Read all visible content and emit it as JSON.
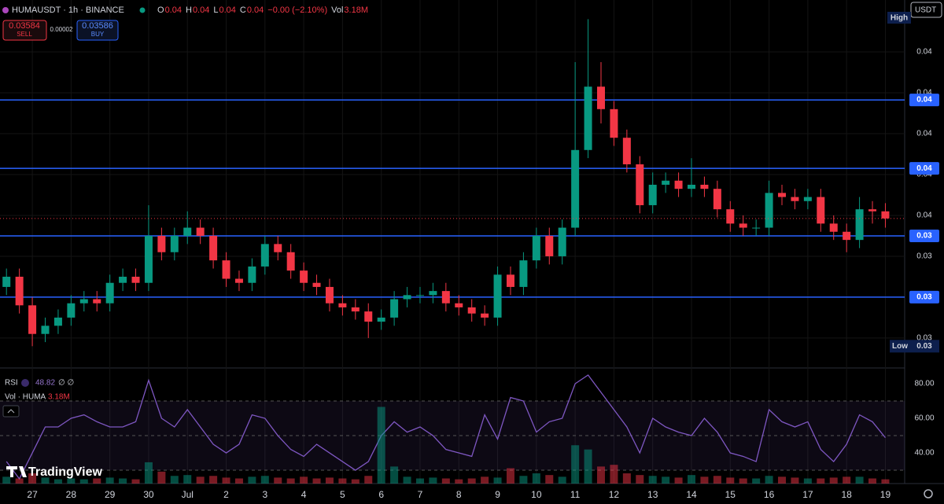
{
  "header": {
    "symbol": "HUMAUSDT · 1h · BINANCE",
    "ohlc": [
      {
        "k": "O",
        "v": "0.04"
      },
      {
        "k": "H",
        "v": "0.04"
      },
      {
        "k": "L",
        "v": "0.04"
      },
      {
        "k": "C",
        "v": "0.04"
      }
    ],
    "change": "−0.00 (−2.10%)",
    "vol_key": "Vol",
    "vol_value": "3.18M",
    "sell_price": "0.03584",
    "sell": "SELL",
    "spread": "0.00002",
    "buy_price": "0.03586",
    "buy": "BUY",
    "currency": "USDT",
    "high": "High",
    "low": {
      "text": "Low",
      "value": 0.0296,
      "label": "0.03"
    },
    "rsi_name": "RSI",
    "rsi_value": "48.82",
    "rsi_extra": "∅ ∅",
    "vol_name": "Vol · HUMA",
    "vol_pane_value": "3.18M",
    "brand": "TradingView"
  },
  "chart_data": [
    {
      "type": "candlestick",
      "up_color": "#089981",
      "down_color": "#f23645",
      "categories": [
        null,
        null,
        "27",
        null,
        null,
        "28",
        null,
        null,
        "29",
        null,
        null,
        "30",
        null,
        null,
        "Jul",
        null,
        null,
        "2",
        null,
        null,
        "3",
        null,
        null,
        "4",
        null,
        null,
        "5",
        null,
        null,
        "6",
        null,
        null,
        "7",
        null,
        null,
        "8",
        null,
        null,
        "9",
        null,
        null,
        "10",
        null,
        null,
        "11",
        null,
        null,
        "12",
        null,
        null,
        "13",
        null,
        null,
        "14",
        null,
        null,
        "15",
        null,
        null,
        "16",
        null,
        null,
        "17",
        null,
        null,
        "18",
        null,
        null,
        "19"
      ],
      "open": [
        0.0325,
        0.033,
        0.0316,
        0.0302,
        0.0306,
        0.031,
        0.0317,
        0.0319,
        0.0317,
        0.0327,
        0.033,
        0.0327,
        0.035,
        0.0342,
        0.035,
        0.0354,
        0.035,
        0.0338,
        0.0329,
        0.0327,
        0.0335,
        0.0346,
        0.0342,
        0.0333,
        0.0327,
        0.0325,
        0.0317,
        0.0315,
        0.0313,
        0.0308,
        0.031,
        0.0319,
        0.0321,
        0.0321,
        0.0323,
        0.0317,
        0.0315,
        0.0312,
        0.031,
        0.0331,
        0.0325,
        0.0338,
        0.035,
        0.034,
        0.0354,
        0.0392,
        0.0423,
        0.0412,
        0.0398,
        0.0385,
        0.0365,
        0.0375,
        0.0377,
        0.0373,
        0.0375,
        0.0373,
        0.0363,
        0.0356,
        0.0354,
        0.0354,
        0.0371,
        0.0369,
        0.0367,
        0.0369,
        0.0356,
        0.0352,
        0.0348,
        0.0363,
        0.0362
      ],
      "high": [
        0.0334,
        0.0334,
        0.032,
        0.031,
        0.0314,
        0.0321,
        0.0323,
        0.0323,
        0.0331,
        0.0334,
        0.0334,
        0.0365,
        0.0354,
        0.0354,
        0.0362,
        0.0358,
        0.0354,
        0.0342,
        0.0333,
        0.0339,
        0.035,
        0.035,
        0.0346,
        0.0337,
        0.0331,
        0.0329,
        0.0321,
        0.0319,
        0.0317,
        0.0314,
        0.0323,
        0.0325,
        0.0325,
        0.0327,
        0.0327,
        0.0321,
        0.0319,
        0.0316,
        0.0335,
        0.0335,
        0.0342,
        0.0354,
        0.0354,
        0.0358,
        0.0435,
        0.0456,
        0.0435,
        0.0416,
        0.0402,
        0.0389,
        0.0381,
        0.0381,
        0.0381,
        0.0388,
        0.0379,
        0.0377,
        0.0367,
        0.036,
        0.0358,
        0.0377,
        0.0375,
        0.0373,
        0.0373,
        0.0373,
        0.036,
        0.0356,
        0.0369,
        0.0367,
        0.0366
      ],
      "low": [
        0.0321,
        0.0312,
        0.0296,
        0.0298,
        0.0302,
        0.0306,
        0.0313,
        0.0313,
        0.0313,
        0.0323,
        0.0323,
        0.0323,
        0.0338,
        0.0338,
        0.0346,
        0.0346,
        0.0334,
        0.0325,
        0.0323,
        0.0323,
        0.0331,
        0.0338,
        0.0329,
        0.0323,
        0.0321,
        0.0313,
        0.0311,
        0.0309,
        0.03,
        0.0304,
        0.0306,
        0.0315,
        0.0317,
        0.0317,
        0.0313,
        0.0311,
        0.0308,
        0.0306,
        0.0306,
        0.0321,
        0.0321,
        0.0334,
        0.0336,
        0.0336,
        0.035,
        0.0388,
        0.0405,
        0.0394,
        0.0381,
        0.0361,
        0.0361,
        0.0371,
        0.0369,
        0.0369,
        0.0369,
        0.0359,
        0.0352,
        0.035,
        0.035,
        0.035,
        0.0365,
        0.0363,
        0.0363,
        0.0352,
        0.0348,
        0.0342,
        0.0344,
        0.0356,
        0.0354
      ],
      "close": [
        0.033,
        0.0316,
        0.0302,
        0.0306,
        0.031,
        0.0317,
        0.0319,
        0.0317,
        0.0327,
        0.033,
        0.0327,
        0.035,
        0.0342,
        0.035,
        0.0354,
        0.035,
        0.0338,
        0.0329,
        0.0327,
        0.0335,
        0.0346,
        0.0342,
        0.0333,
        0.0327,
        0.0325,
        0.0317,
        0.0315,
        0.0313,
        0.0308,
        0.031,
        0.0319,
        0.0321,
        0.0321,
        0.0323,
        0.0317,
        0.0315,
        0.0312,
        0.031,
        0.0331,
        0.0325,
        0.0338,
        0.035,
        0.034,
        0.0354,
        0.0392,
        0.0423,
        0.0412,
        0.0398,
        0.0385,
        0.0365,
        0.0375,
        0.0377,
        0.0373,
        0.0375,
        0.0373,
        0.0363,
        0.0356,
        0.0354,
        0.0354,
        0.0371,
        0.0369,
        0.0367,
        0.0369,
        0.0356,
        0.0352,
        0.0348,
        0.0363,
        0.0362,
        0.03585
      ],
      "ylim": [
        0.02865,
        0.04654
      ],
      "yticks": [
        {
          "value": 0.044,
          "label": "0.04"
        },
        {
          "value": 0.042,
          "label": "0.04"
        },
        {
          "value": 0.04,
          "label": "0.04"
        },
        {
          "value": 0.038,
          "label": "0.04"
        },
        {
          "value": 0.036,
          "label": "0.04"
        },
        {
          "value": 0.034,
          "label": "0.03"
        },
        {
          "value": 0.032,
          "label": "0.03"
        },
        {
          "value": 0.03,
          "label": "0.03"
        }
      ],
      "hlines": [
        {
          "value": 0.04165,
          "label": "0.04"
        },
        {
          "value": 0.0383,
          "label": "0.04"
        },
        {
          "value": 0.035,
          "label": "0.03"
        },
        {
          "value": 0.032,
          "label": "0.03"
        }
      ],
      "hline_color": "#2962ff",
      "grid": true
    },
    {
      "type": "line",
      "name": "RSI",
      "color": "#7e57c2",
      "values": [
        35,
        25,
        40,
        55,
        55,
        60,
        62,
        58,
        55,
        55,
        58,
        82,
        60,
        55,
        65,
        55,
        45,
        40,
        45,
        62,
        60,
        50,
        42,
        38,
        45,
        40,
        35,
        30,
        35,
        50,
        58,
        52,
        55,
        50,
        42,
        40,
        38,
        62,
        48,
        72,
        70,
        52,
        58,
        60,
        80,
        85,
        75,
        65,
        55,
        40,
        60,
        55,
        52,
        50,
        60,
        52,
        40,
        38,
        35,
        65,
        58,
        55,
        58,
        42,
        35,
        45,
        62,
        58,
        48.82
      ],
      "ylim": [
        22.3,
        85.9
      ],
      "yticks": [
        {
          "value": 40,
          "label": "40.00"
        },
        {
          "value": 60,
          "label": "60.00"
        },
        {
          "value": 80,
          "label": "80.00"
        }
      ],
      "bands": [
        30,
        50,
        70
      ]
    },
    {
      "type": "bar",
      "name": "Volume",
      "values": [
        8,
        6,
        12,
        7,
        5,
        6,
        5,
        6,
        7,
        6,
        5,
        25,
        14,
        9,
        10,
        8,
        9,
        7,
        6,
        8,
        9,
        7,
        6,
        8,
        6,
        7,
        6,
        5,
        9,
        90,
        20,
        8,
        6,
        7,
        6,
        5,
        6,
        8,
        7,
        18,
        9,
        12,
        10,
        8,
        45,
        40,
        20,
        22,
        12,
        10,
        9,
        8,
        7,
        10,
        8,
        9,
        7,
        6,
        6,
        9,
        8,
        7,
        6,
        6,
        7,
        8,
        8,
        6,
        5
      ],
      "ylim": [
        0,
        120
      ]
    }
  ]
}
